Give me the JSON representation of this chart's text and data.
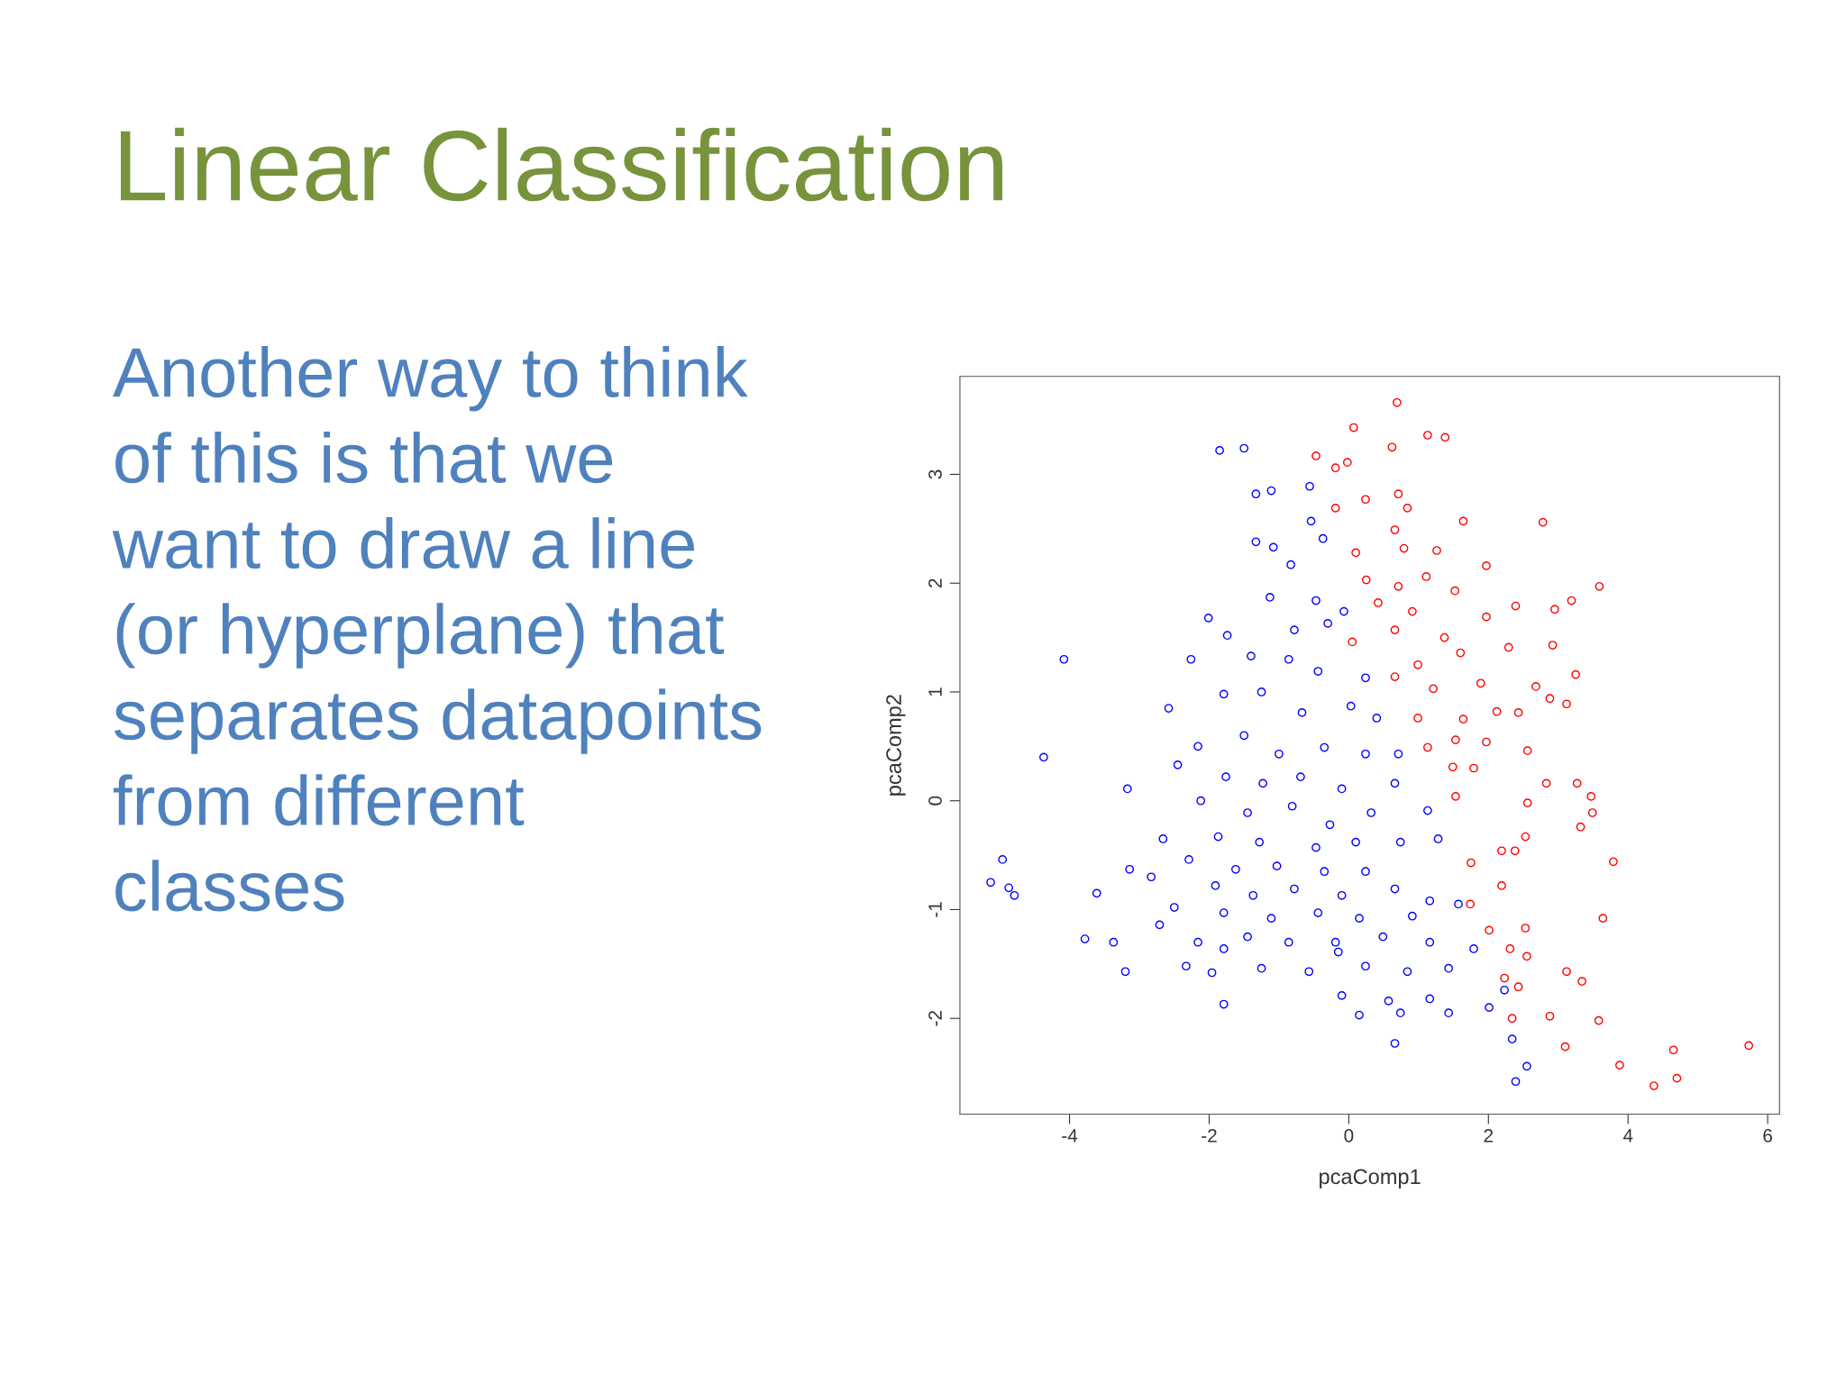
{
  "chart_data": {
    "type": "scatter",
    "title": "Linear Classification",
    "xlabel": "pcaComp1",
    "ylabel": "pcaComp2",
    "annotations": [
      "Another way to think\nof this is that we\nwant to draw a line\n(or hyperplane) that\nseparates datapoints\nfrom different\nclasses"
    ],
    "xlim": [
      -5.57,
      6.17
    ],
    "ylim": [
      -2.88,
      3.9
    ],
    "xticks": [
      -4,
      -2,
      0,
      2,
      4,
      6
    ],
    "yticks": [
      -2,
      -1,
      0,
      1,
      2,
      3
    ],
    "grid": false,
    "marker": "circle",
    "series": [
      {
        "color": "#0000ff",
        "x": [
          -1.85,
          -1.5,
          -1.33,
          -1.11,
          -0.56,
          -1.33,
          -1.08,
          -0.54,
          -0.37,
          -0.83,
          -1.13,
          -0.47,
          -0.07,
          -2.01,
          -1.74,
          -0.78,
          -0.3,
          -4.08,
          -2.26,
          -1.4,
          -0.86,
          -0.44,
          0.24,
          -2.58,
          -1.79,
          -1.25,
          -0.67,
          0.03,
          0.4,
          -2.16,
          -1.5,
          -1.0,
          -0.35,
          0.24,
          0.71,
          -4.37,
          -2.45,
          -1.76,
          -1.23,
          -0.69,
          -0.1,
          0.66,
          -3.17,
          -2.12,
          -1.45,
          -0.81,
          -0.27,
          0.32,
          1.13,
          -2.66,
          -1.87,
          -1.28,
          -0.47,
          0.1,
          0.74,
          1.28,
          -4.96,
          -2.29,
          -1.62,
          -1.03,
          -0.35,
          0.24,
          -3.14,
          -5.13,
          -2.83,
          -1.91,
          -1.37,
          -0.78,
          -0.1,
          0.66,
          1.16,
          -4.87,
          -4.79,
          -3.61,
          -2.5,
          -1.79,
          -1.11,
          -0.44,
          0.15,
          0.91,
          1.57,
          -2.71,
          -1.45,
          -0.86,
          -0.19,
          0.49,
          1.16,
          -3.78,
          -3.37,
          -2.16,
          -1.79,
          -0.15,
          1.79,
          -2.33,
          -1.25,
          -0.57,
          0.24,
          0.84,
          1.43,
          -3.2,
          -1.96,
          -0.1,
          0.57,
          1.16,
          2.01,
          -1.79,
          0.15,
          0.74,
          1.43,
          0.66,
          2.34,
          2.55,
          2.39,
          2.23
        ],
        "values": [
          3.22,
          3.24,
          2.82,
          2.85,
          2.89,
          2.38,
          2.33,
          2.57,
          2.41,
          2.17,
          1.87,
          1.84,
          1.74,
          1.68,
          1.52,
          1.57,
          1.63,
          1.3,
          1.3,
          1.33,
          1.3,
          1.19,
          1.13,
          0.85,
          0.98,
          1.0,
          0.81,
          0.87,
          0.76,
          0.5,
          0.6,
          0.43,
          0.49,
          0.43,
          0.43,
          0.4,
          0.33,
          0.22,
          0.16,
          0.22,
          0.11,
          0.16,
          0.11,
          0.0,
          -0.11,
          -0.05,
          -0.22,
          -0.11,
          -0.09,
          -0.35,
          -0.33,
          -0.38,
          -0.43,
          -0.38,
          -0.38,
          -0.35,
          -0.54,
          -0.54,
          -0.63,
          -0.6,
          -0.65,
          -0.65,
          -0.63,
          -0.75,
          -0.7,
          -0.78,
          -0.87,
          -0.81,
          -0.87,
          -0.81,
          -0.92,
          -0.8,
          -0.87,
          -0.85,
          -0.98,
          -1.03,
          -1.08,
          -1.03,
          -1.08,
          -1.06,
          -0.95,
          -1.14,
          -1.25,
          -1.3,
          -1.3,
          -1.25,
          -1.3,
          -1.27,
          -1.3,
          -1.3,
          -1.36,
          -1.39,
          -1.36,
          -1.52,
          -1.54,
          -1.57,
          -1.52,
          -1.57,
          -1.54,
          -1.57,
          -1.58,
          -1.79,
          -1.84,
          -1.82,
          -1.9,
          -1.87,
          -1.97,
          -1.95,
          -1.95,
          -2.23,
          -2.19,
          -2.44,
          -2.58,
          -1.74
        ]
      },
      {
        "color": "#ff0000",
        "x": [
          0.69,
          0.07,
          1.13,
          1.38,
          -0.47,
          0.62,
          -0.19,
          -0.02,
          0.71,
          -0.19,
          0.24,
          0.84,
          1.64,
          2.78,
          0.1,
          0.66,
          1.26,
          0.79,
          1.97,
          0.25,
          0.71,
          1.11,
          1.52,
          3.59,
          0.42,
          0.91,
          2.39,
          2.95,
          3.19,
          0.05,
          0.66,
          1.37,
          1.97,
          2.29,
          2.92,
          0.99,
          1.6,
          3.25,
          0.66,
          1.21,
          1.89,
          2.68,
          2.88,
          3.12,
          0.99,
          1.64,
          2.12,
          2.43,
          1.13,
          1.53,
          1.97,
          2.56,
          1.49,
          1.79,
          2.83,
          3.27,
          3.47,
          2.56,
          1.53,
          3.49,
          3.32,
          2.19,
          2.38,
          2.53,
          3.79,
          1.75,
          2.19,
          1.74,
          3.64,
          2.01,
          2.53,
          2.31,
          2.55,
          2.23,
          2.43,
          3.12,
          3.34,
          2.88,
          3.58,
          2.34,
          3.1,
          3.88,
          4.65,
          5.73,
          4.37,
          4.7
        ],
        "values": [
          3.66,
          3.43,
          3.36,
          3.34,
          3.17,
          3.25,
          3.06,
          3.11,
          2.82,
          2.69,
          2.77,
          2.69,
          2.57,
          2.56,
          2.28,
          2.49,
          2.3,
          2.32,
          2.16,
          2.03,
          1.97,
          2.06,
          1.93,
          1.97,
          1.82,
          1.74,
          1.79,
          1.76,
          1.84,
          1.46,
          1.57,
          1.5,
          1.69,
          1.41,
          1.43,
          1.25,
          1.36,
          1.16,
          1.14,
          1.03,
          1.08,
          1.05,
          0.94,
          0.89,
          0.76,
          0.75,
          0.82,
          0.81,
          0.49,
          0.56,
          0.54,
          0.46,
          0.31,
          0.3,
          0.16,
          0.16,
          0.04,
          -0.02,
          0.04,
          -0.11,
          -0.24,
          -0.46,
          -0.46,
          -0.33,
          -0.56,
          -0.57,
          -0.78,
          -0.95,
          -1.08,
          -1.19,
          -1.17,
          -1.36,
          -1.43,
          -1.63,
          -1.71,
          -1.57,
          -1.66,
          -1.98,
          -2.02,
          -2.0,
          -2.26,
          -2.43,
          -2.29,
          -2.25,
          -2.62,
          -2.55
        ]
      }
    ]
  }
}
